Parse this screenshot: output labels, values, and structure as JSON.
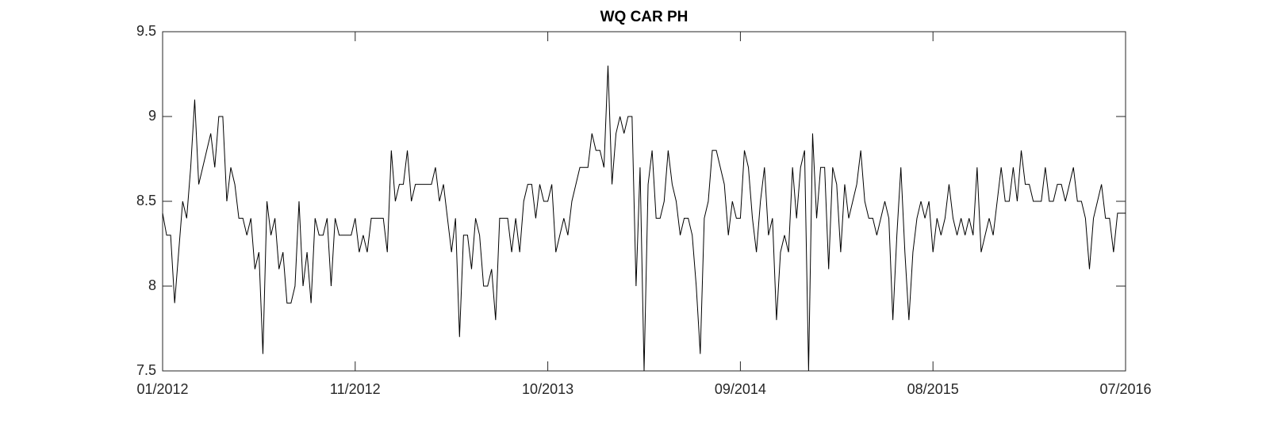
{
  "chart_data": {
    "type": "line",
    "title": "WQ CAR PH",
    "categories": [
      "01/2012",
      null,
      null,
      null,
      null,
      null,
      null,
      null,
      null,
      null,
      null,
      null,
      null,
      null,
      null,
      null,
      null,
      null,
      null,
      null,
      null,
      null,
      null,
      null,
      null,
      null,
      null,
      null,
      null,
      null,
      null,
      null,
      null,
      null,
      null,
      null,
      null,
      null,
      null,
      null,
      null,
      null,
      null,
      null,
      null,
      null,
      null,
      null,
      "11/2012",
      null,
      null,
      null,
      null,
      null,
      null,
      null,
      null,
      null,
      null,
      null,
      null,
      null,
      null,
      null,
      null,
      null,
      null,
      null,
      null,
      null,
      null,
      null,
      null,
      null,
      null,
      null,
      null,
      null,
      null,
      null,
      null,
      null,
      null,
      null,
      null,
      null,
      null,
      null,
      null,
      null,
      null,
      null,
      null,
      null,
      null,
      null,
      "10/2013",
      null,
      null,
      null,
      null,
      null,
      null,
      null,
      null,
      null,
      null,
      null,
      null,
      null,
      null,
      null,
      null,
      null,
      null,
      null,
      null,
      null,
      null,
      null,
      null,
      null,
      null,
      null,
      null,
      null,
      null,
      null,
      null,
      null,
      null,
      null,
      null,
      null,
      null,
      null,
      null,
      null,
      null,
      null,
      null,
      null,
      null,
      null,
      "09/2014",
      null,
      null,
      null,
      null,
      null,
      null,
      null,
      null,
      null,
      null,
      null,
      null,
      null,
      null,
      null,
      null,
      null,
      null,
      null,
      null,
      null,
      null,
      null,
      null,
      null,
      null,
      null,
      null,
      null,
      null,
      null,
      null,
      null,
      null,
      null,
      null,
      null,
      null,
      null,
      null,
      null,
      null,
      null,
      null,
      null,
      null,
      null,
      "08/2015",
      null,
      null,
      null,
      null,
      null,
      null,
      null,
      null,
      null,
      null,
      null,
      null,
      null,
      null,
      null,
      null,
      null,
      null,
      null,
      null,
      null,
      null,
      null,
      null,
      null,
      null,
      null,
      null,
      null,
      null,
      null,
      null,
      null,
      null,
      null,
      null,
      null,
      null,
      null,
      null,
      null,
      null,
      null,
      null,
      null,
      null,
      null,
      "07/2016"
    ],
    "values": [
      8.43,
      8.3,
      8.3,
      7.9,
      8.2,
      8.5,
      8.4,
      8.7,
      9.1,
      8.6,
      8.7,
      8.8,
      8.9,
      8.7,
      9.0,
      9.0,
      8.5,
      8.7,
      8.6,
      8.4,
      8.4,
      8.3,
      8.4,
      8.1,
      8.2,
      7.6,
      8.5,
      8.3,
      8.4,
      8.1,
      8.2,
      7.9,
      7.9,
      8.0,
      8.5,
      8.0,
      8.2,
      7.9,
      8.4,
      8.3,
      8.3,
      8.4,
      8.0,
      8.4,
      8.3,
      8.3,
      8.3,
      8.3,
      8.4,
      8.2,
      8.3,
      8.2,
      8.4,
      8.4,
      8.4,
      8.4,
      8.2,
      8.8,
      8.5,
      8.6,
      8.6,
      8.8,
      8.5,
      8.6,
      8.6,
      8.6,
      8.6,
      8.6,
      8.7,
      8.5,
      8.6,
      8.4,
      8.2,
      8.4,
      7.7,
      8.3,
      8.3,
      8.1,
      8.4,
      8.3,
      8.0,
      8.0,
      8.1,
      7.8,
      8.4,
      8.4,
      8.4,
      8.2,
      8.4,
      8.2,
      8.5,
      8.6,
      8.6,
      8.4,
      8.6,
      8.5,
      8.5,
      8.6,
      8.2,
      8.3,
      8.4,
      8.3,
      8.5,
      8.6,
      8.7,
      8.7,
      8.7,
      8.9,
      8.8,
      8.8,
      8.7,
      9.3,
      8.6,
      8.9,
      9.0,
      8.9,
      9.0,
      9.0,
      8.0,
      8.7,
      7.5,
      8.6,
      8.8,
      8.4,
      8.4,
      8.5,
      8.8,
      8.6,
      8.5,
      8.3,
      8.4,
      8.4,
      8.3,
      8.0,
      7.6,
      8.4,
      8.5,
      8.8,
      8.8,
      8.7,
      8.6,
      8.3,
      8.5,
      8.4,
      8.4,
      8.8,
      8.7,
      8.4,
      8.2,
      8.5,
      8.7,
      8.3,
      8.4,
      7.8,
      8.2,
      8.3,
      8.2,
      8.7,
      8.4,
      8.7,
      8.8,
      7.5,
      8.9,
      8.4,
      8.7,
      8.7,
      8.1,
      8.7,
      8.6,
      8.2,
      8.6,
      8.4,
      8.5,
      8.6,
      8.8,
      8.5,
      8.4,
      8.4,
      8.3,
      8.4,
      8.5,
      8.4,
      7.8,
      8.3,
      8.7,
      8.2,
      7.8,
      8.2,
      8.4,
      8.5,
      8.4,
      8.5,
      8.2,
      8.4,
      8.3,
      8.4,
      8.6,
      8.4,
      8.3,
      8.4,
      8.3,
      8.4,
      8.3,
      8.7,
      8.2,
      8.3,
      8.4,
      8.3,
      8.5,
      8.7,
      8.5,
      8.5,
      8.7,
      8.5,
      8.8,
      8.6,
      8.6,
      8.5,
      8.5,
      8.5,
      8.7,
      8.5,
      8.5,
      8.6,
      8.6,
      8.5,
      8.6,
      8.7,
      8.5,
      8.5,
      8.4,
      8.1,
      8.4,
      8.5,
      8.6,
      8.4,
      8.4,
      8.2,
      8.43,
      8.43,
      8.43
    ],
    "color": "#000000",
    "ylim": [
      7.5,
      9.5
    ],
    "yticks": [
      7.5,
      8,
      8.5,
      9,
      9.5
    ],
    "grid": false
  }
}
